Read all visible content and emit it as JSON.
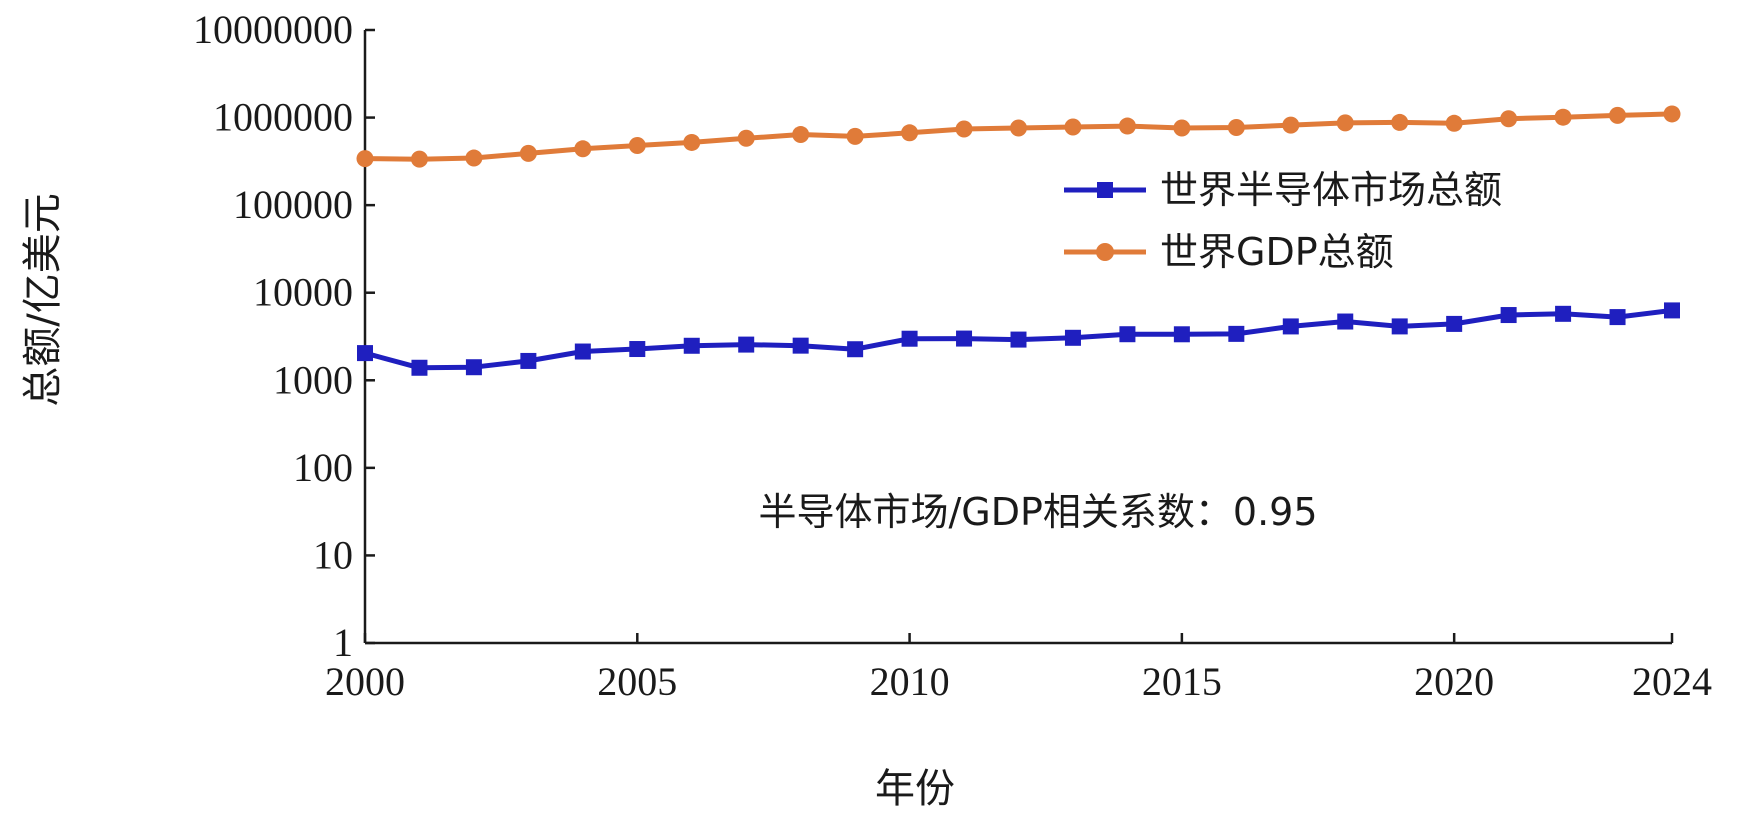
{
  "chart_data": {
    "type": "line",
    "xlabel": "年份",
    "ylabel": "总额/亿美元",
    "xlim": [
      2000,
      2024
    ],
    "ylim": [
      1,
      10000000
    ],
    "yscale": "log",
    "xticks": [
      "2000",
      "2005",
      "2010",
      "2015",
      "2020",
      "2024"
    ],
    "yticks": [
      "1",
      "10",
      "100",
      "1000",
      "10000",
      "100000",
      "1000000",
      "10000000"
    ],
    "x": [
      2000,
      2001,
      2002,
      2003,
      2004,
      2005,
      2006,
      2007,
      2008,
      2009,
      2010,
      2011,
      2012,
      2013,
      2014,
      2015,
      2016,
      2017,
      2018,
      2019,
      2020,
      2021,
      2022,
      2023,
      2024
    ],
    "series": [
      {
        "name": "世界半导体市场总额",
        "color": "#1f1fbf",
        "marker": "square",
        "values": [
          2044,
          1390,
          1410,
          1663,
          2130,
          2275,
          2478,
          2556,
          2486,
          2263,
          2983,
          2995,
          2916,
          3056,
          3358,
          3352,
          3389,
          4122,
          4688,
          4123,
          4404,
          5559,
          5741,
          5268,
          6280
        ]
      },
      {
        "name": "世界GDP总额",
        "color": "#e07b39",
        "marker": "circle",
        "values": [
          340000,
          335000,
          345000,
          390000,
          440000,
          480000,
          520000,
          580000,
          640000,
          610000,
          670000,
          740000,
          760000,
          780000,
          800000,
          760000,
          770000,
          820000,
          870000,
          880000,
          860000,
          970000,
          1010000,
          1060000,
          1100000
        ]
      }
    ],
    "legend_position": "right",
    "annotation": "半导体市场/GDP相关系数：0.95"
  }
}
